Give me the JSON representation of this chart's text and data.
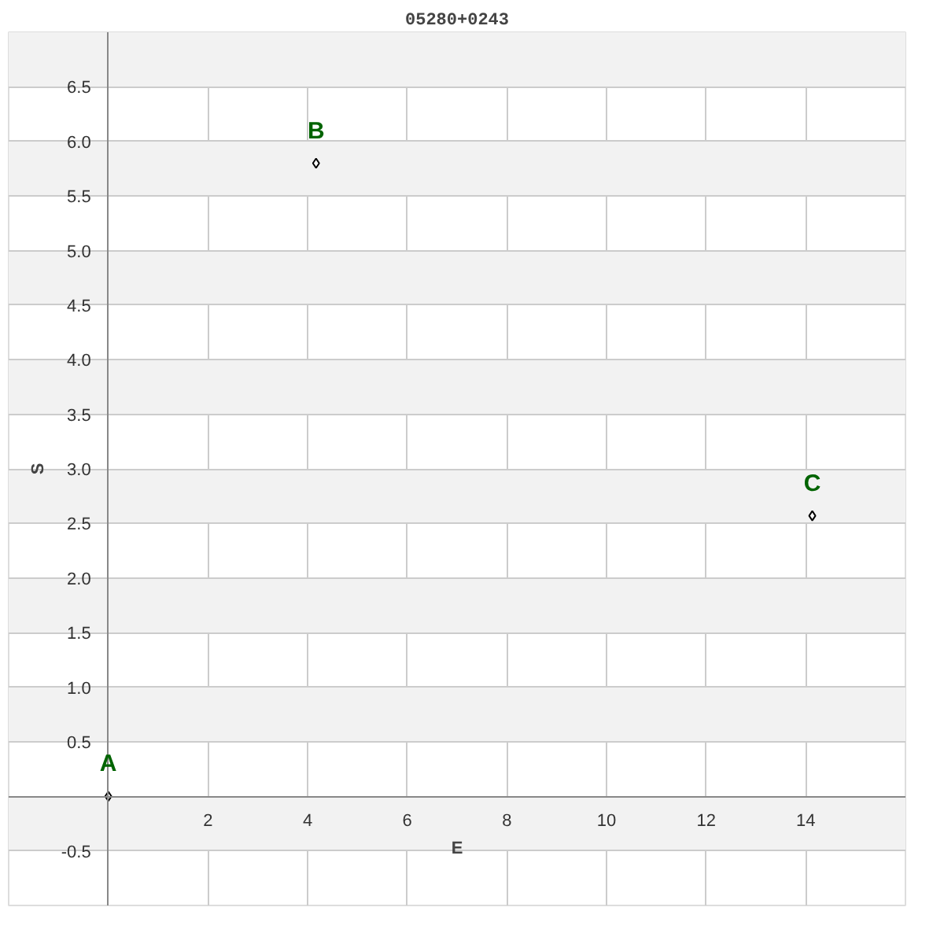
{
  "chart_data": {
    "type": "scatter",
    "title": "05280+0243",
    "xlabel": "E",
    "ylabel": "S",
    "x": [
      0,
      4.17,
      14.13
    ],
    "series": [
      {
        "color": "#000000",
        "values": [
          0,
          5.8,
          2.57
        ]
      }
    ],
    "marker": "diamond",
    "annotations": [
      {
        "text": "A",
        "x": 0,
        "y": 0
      },
      {
        "text": "B",
        "x": 4.17,
        "y": 5.8
      },
      {
        "text": "C",
        "x": 14.13,
        "y": 2.57
      }
    ],
    "xlim": [
      -2,
      16
    ],
    "ylim": [
      -1,
      7
    ],
    "xticks": [
      {
        "value": 0,
        "label": null
      },
      2,
      4,
      6,
      8,
      10,
      12,
      14
    ],
    "yticks": [
      -0.5,
      {
        "value": 0,
        "label": null
      },
      0.5,
      {
        "value": 1,
        "label": "1.0"
      },
      1.5,
      {
        "value": 2,
        "label": "2.0"
      },
      2.5,
      {
        "value": 3,
        "label": "3.0"
      },
      3.5,
      {
        "value": 4,
        "label": "4.0"
      },
      4.5,
      {
        "value": 5,
        "label": "5.0"
      },
      5.5,
      {
        "value": 6,
        "label": "6.0"
      },
      6.5
    ],
    "grid": true
  }
}
